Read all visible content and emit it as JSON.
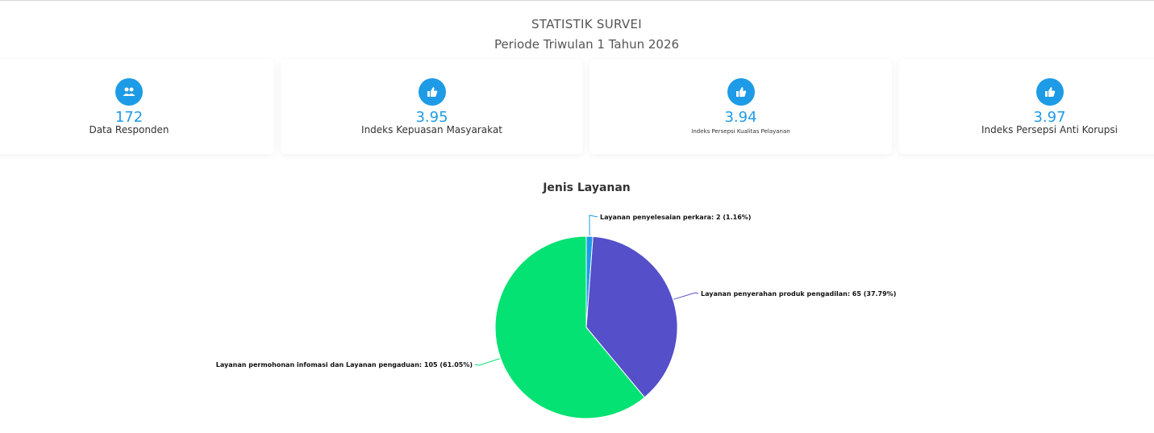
{
  "header": {
    "title": "STATISTIK SURVEI",
    "subtitle": "Periode Triwulan 1 Tahun 2026"
  },
  "cards": [
    {
      "icon": "users-icon",
      "value": "172",
      "label": "Data Responden"
    },
    {
      "icon": "thumbs-up-icon",
      "value": "3.95",
      "label": "Indeks Kepuasan Masyarakat"
    },
    {
      "icon": "thumbs-up-icon",
      "value": "3.94",
      "label": "Indeks Persepsi Kualitas Pelayanan"
    },
    {
      "icon": "thumbs-up-icon",
      "value": "3.97",
      "label": "Indeks Persepsi Anti Korupsi"
    }
  ],
  "colors": {
    "accent": "#1e9be6",
    "slice_1": "#1e9be6",
    "slice_2": "#554fc9",
    "slice_3": "#03e272"
  },
  "chart_data": {
    "type": "pie",
    "title": "Jenis Layanan",
    "slices": [
      {
        "name": "Layanan penyelesaian perkara",
        "value": 2,
        "percent": 1.16,
        "label": "Layanan penyelesaian perkara: 2 (1.16%)"
      },
      {
        "name": "Layanan penyerahan produk pengadilan",
        "value": 65,
        "percent": 37.79,
        "label": "Layanan penyerahan produk pengadilan: 65 (37.79%)"
      },
      {
        "name": "Layanan permohonan infomasi dan Layanan pengaduan",
        "value": 105,
        "percent": 61.05,
        "label": "Layanan permohonan infomasi dan Layanan pengaduan: 105 (61.05%)"
      }
    ]
  }
}
